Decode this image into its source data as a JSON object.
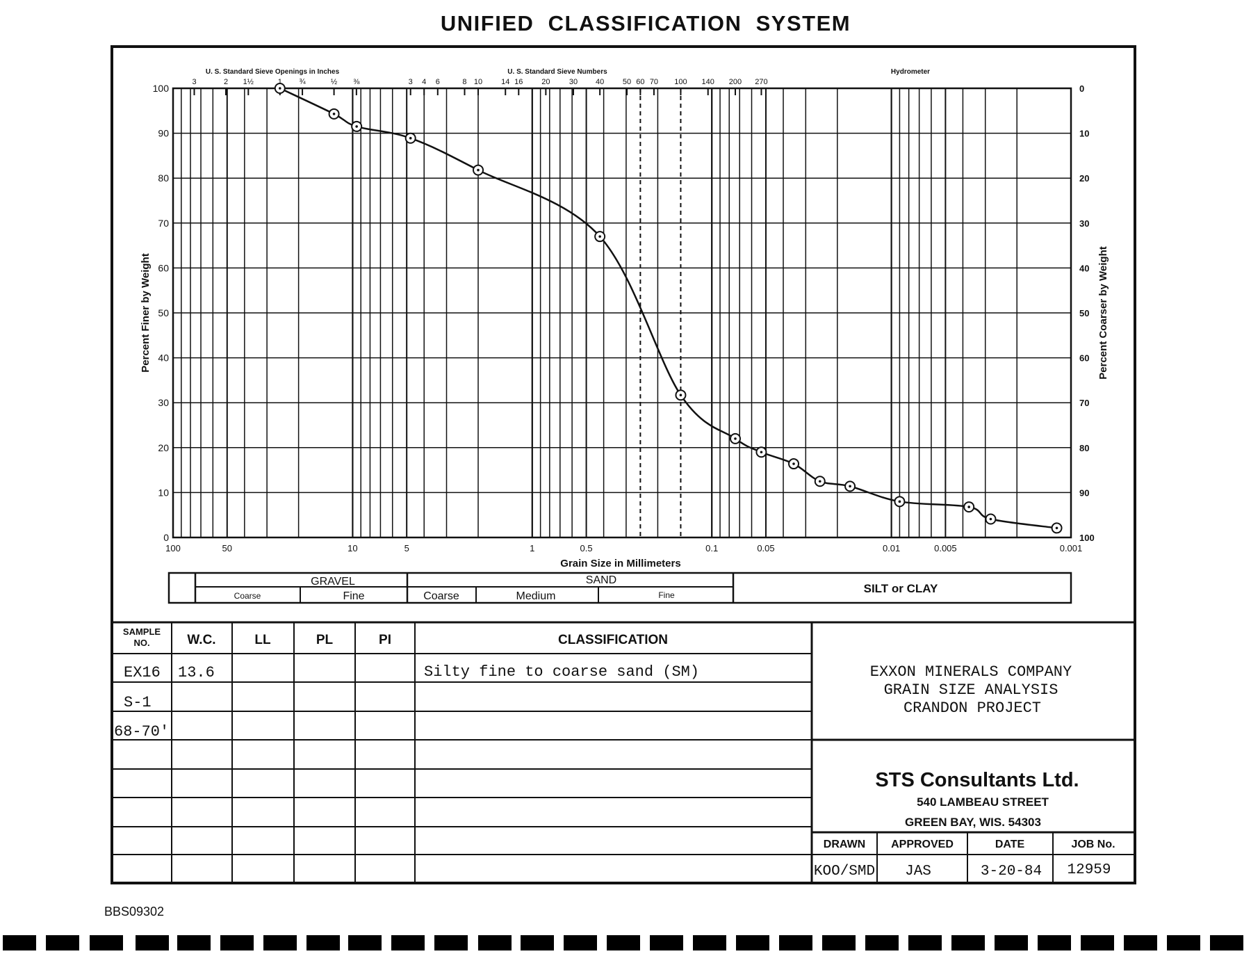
{
  "page": {
    "title": "UNIFIED  CLASSIFICATION  SYSTEM",
    "doc_id": "BBS09302"
  },
  "chart_data": {
    "type": "line",
    "x_scale": "log-reversed",
    "xlabel": "Grain Size in Millimeters",
    "ylabel": "Percent Finer by Weight",
    "ylabel_right": "Percent Coarser by Weight",
    "xlim": [
      100,
      0.001
    ],
    "ylim": [
      0,
      100
    ],
    "x_ticks": [
      {
        "v": 100,
        "label": "100"
      },
      {
        "v": 50,
        "label": "50"
      },
      {
        "v": 10,
        "label": "10"
      },
      {
        "v": 5,
        "label": "5"
      },
      {
        "v": 1,
        "label": "1"
      },
      {
        "v": 0.5,
        "label": "0.5"
      },
      {
        "v": 0.1,
        "label": "0.1"
      },
      {
        "v": 0.05,
        "label": "0.05"
      },
      {
        "v": 0.01,
        "label": "0.01"
      },
      {
        "v": 0.005,
        "label": "0.005"
      },
      {
        "v": 0.001,
        "label": "0.001"
      }
    ],
    "y_ticks_left": [
      "0",
      "10",
      "20",
      "30",
      "40",
      "50",
      "60",
      "70",
      "80",
      "90",
      "100"
    ],
    "y_ticks_right": [
      "100",
      "90",
      "80",
      "70",
      "60",
      "50",
      "40",
      "30",
      "20",
      "10",
      "0"
    ],
    "top_scale_inches_label": "U. S. Standard Sieve Openings in Inches",
    "top_scale_inches": [
      {
        "mm": 76.2,
        "label": "3"
      },
      {
        "mm": 50.8,
        "label": "2"
      },
      {
        "mm": 38.1,
        "label": "1½"
      },
      {
        "mm": 25.4,
        "label": "1"
      },
      {
        "mm": 19.05,
        "label": "¾"
      },
      {
        "mm": 12.7,
        "label": "½"
      },
      {
        "mm": 9.525,
        "label": "⅜"
      }
    ],
    "top_scale_numbers_label": "U. S. Standard Sieve Numbers",
    "top_scale_numbers": [
      {
        "mm": 4.76,
        "label": "3"
      },
      {
        "mm": 4.0,
        "label": "4"
      },
      {
        "mm": 3.36,
        "label": "6"
      },
      {
        "mm": 2.38,
        "label": "8"
      },
      {
        "mm": 2.0,
        "label": "10"
      },
      {
        "mm": 1.41,
        "label": "14"
      },
      {
        "mm": 1.19,
        "label": "16"
      },
      {
        "mm": 0.84,
        "label": "20"
      },
      {
        "mm": 0.59,
        "label": "30"
      },
      {
        "mm": 0.42,
        "label": "40"
      },
      {
        "mm": 0.297,
        "label": "50"
      },
      {
        "mm": 0.25,
        "label": "60"
      },
      {
        "mm": 0.21,
        "label": "70"
      },
      {
        "mm": 0.149,
        "label": "100"
      },
      {
        "mm": 0.105,
        "label": "140"
      },
      {
        "mm": 0.074,
        "label": "200"
      },
      {
        "mm": 0.053,
        "label": "270"
      }
    ],
    "top_scale_hydrometer_label": "Hydrometer",
    "dashed_lines_mm": [
      0.25,
      0.149
    ],
    "series": [
      {
        "points": [
          {
            "x": 25.4,
            "y": 100
          },
          {
            "x": 12.7,
            "y": 94.3
          },
          {
            "x": 9.5,
            "y": 91.5
          },
          {
            "x": 4.76,
            "y": 88.9
          },
          {
            "x": 2.0,
            "y": 81.8
          },
          {
            "x": 0.42,
            "y": 67.0
          },
          {
            "x": 0.149,
            "y": 31.7
          },
          {
            "x": 0.074,
            "y": 22.0
          },
          {
            "x": 0.053,
            "y": 19.0
          },
          {
            "x": 0.035,
            "y": 16.4
          },
          {
            "x": 0.025,
            "y": 12.5
          },
          {
            "x": 0.017,
            "y": 11.4
          },
          {
            "x": 0.009,
            "y": 8.0
          },
          {
            "x": 0.0037,
            "y": 6.8
          },
          {
            "x": 0.0028,
            "y": 4.1
          },
          {
            "x": 0.0012,
            "y": 2.1
          }
        ]
      }
    ]
  },
  "classification_bar": {
    "gravel": "GRAVEL",
    "gravel_coarse": "Coarse",
    "gravel_fine": "Fine",
    "sand": "SAND",
    "sand_coarse": "Coarse",
    "sand_medium": "Medium",
    "sand_fine": "Fine",
    "silt_clay": "SILT or CLAY"
  },
  "table": {
    "headers": [
      "SAMPLE NO.",
      "W.C.",
      "LL",
      "PL",
      "PI",
      "CLASSIFICATION"
    ],
    "header_sample_line1": "SAMPLE",
    "header_sample_line2": "NO.",
    "rows": [
      [
        "EX16",
        "13.6",
        "",
        "",
        "",
        "Silty fine to coarse sand (SM)"
      ],
      [
        "S-1",
        "",
        "",
        "",
        "",
        ""
      ],
      [
        "68-70'",
        "",
        "",
        "",
        "",
        ""
      ],
      [
        "",
        "",
        "",
        "",
        "",
        ""
      ],
      [
        "",
        "",
        "",
        "",
        "",
        ""
      ],
      [
        "",
        "",
        "",
        "",
        "",
        ""
      ],
      [
        "",
        "",
        "",
        "",
        "",
        ""
      ]
    ]
  },
  "project": {
    "line1": "EXXON MINERALS COMPANY",
    "line2": "GRAIN SIZE ANALYSIS",
    "line3": "CRANDON PROJECT"
  },
  "firm": {
    "name": "STS Consultants Ltd.",
    "street": "540 LAMBEAU STREET",
    "city": "GREEN BAY, WIS. 54303"
  },
  "titleblock": {
    "drawn_label": "DRAWN",
    "approved_label": "APPROVED",
    "date_label": "DATE",
    "job_label": "JOB No.",
    "drawn": "KOO/SMD",
    "approved": "JAS",
    "date": "3-20-84",
    "job": "12959"
  }
}
